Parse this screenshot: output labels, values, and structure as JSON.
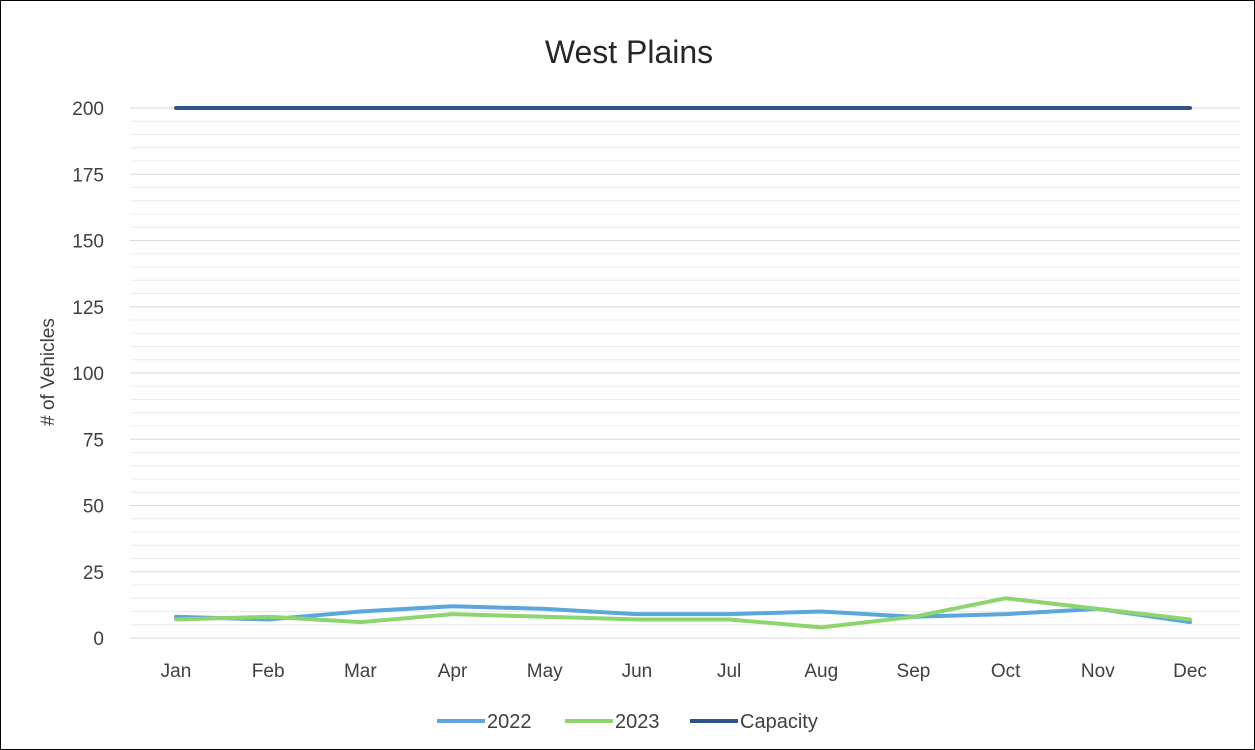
{
  "chart_data": {
    "type": "line",
    "title": "West Plains",
    "xlabel": "",
    "ylabel": "# of Vehicles",
    "categories": [
      "Jan",
      "Feb",
      "Mar",
      "Apr",
      "May",
      "Jun",
      "Jul",
      "Aug",
      "Sep",
      "Oct",
      "Nov",
      "Dec"
    ],
    "ylim": [
      0,
      200
    ],
    "yticks": [
      0,
      25,
      50,
      75,
      100,
      125,
      150,
      175,
      200
    ],
    "grid": true,
    "legend": "bottom",
    "series": [
      {
        "name": "2022",
        "color": "#5ba7d9",
        "values": [
          8,
          7,
          10,
          12,
          11,
          9,
          9,
          10,
          8,
          9,
          11,
          6
        ]
      },
      {
        "name": "2023",
        "color": "#8ed46f",
        "values": [
          7,
          8,
          6,
          9,
          8,
          7,
          7,
          4,
          8,
          15,
          11,
          7
        ]
      },
      {
        "name": "Capacity",
        "color": "#2e5483",
        "values": [
          200,
          200,
          200,
          200,
          200,
          200,
          200,
          200,
          200,
          200,
          200,
          200
        ]
      }
    ]
  }
}
